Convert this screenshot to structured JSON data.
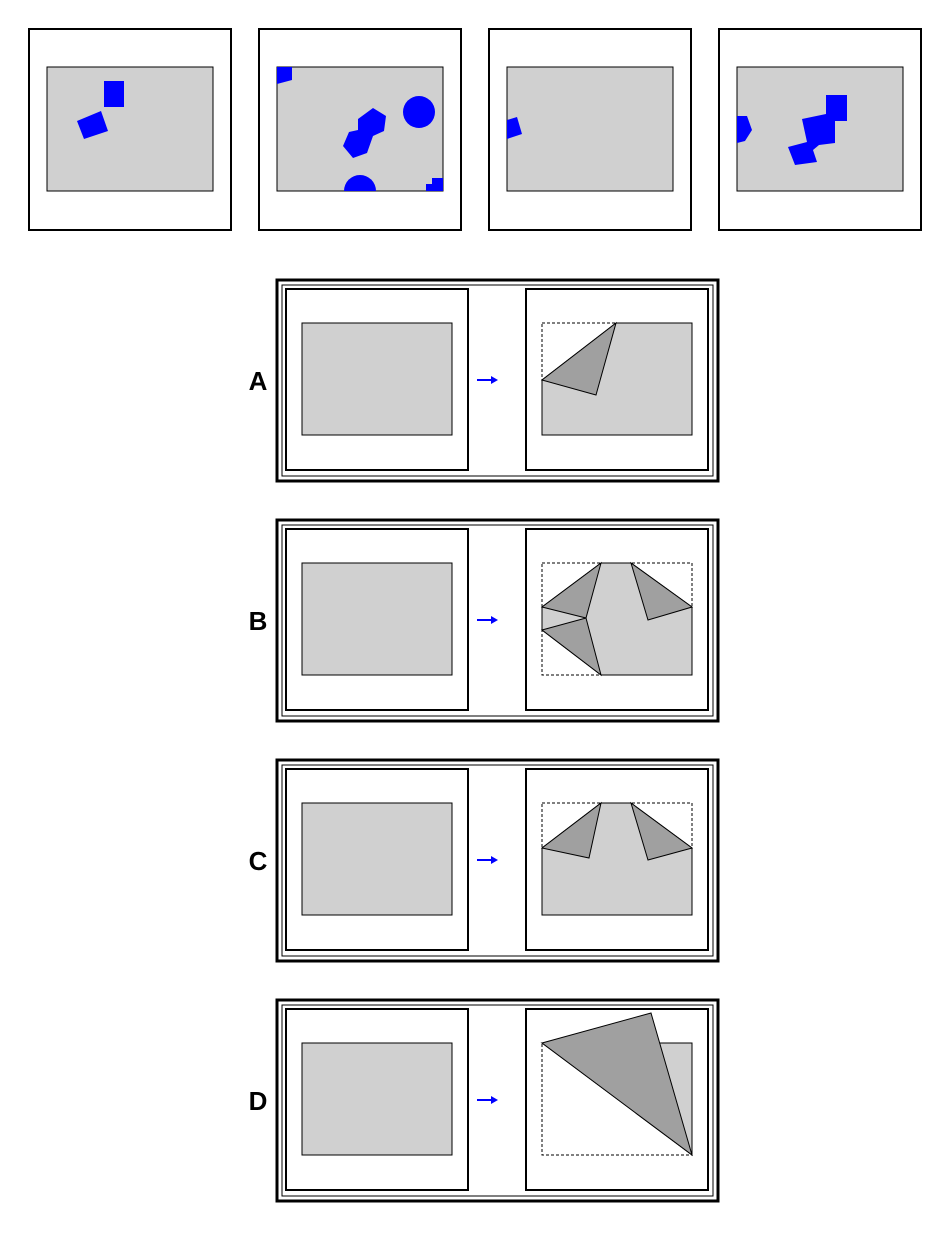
{
  "colors": {
    "background": "#ffffff",
    "paper": "#d0d0d0",
    "fold": "#a0a0a0",
    "blue": "#0000ff",
    "line": "#000000"
  },
  "examples": [
    {
      "name": "example-panel-1",
      "description_icons": [
        "blue-square-shape",
        "blue-rotated-rectangle-shape"
      ]
    },
    {
      "name": "example-panel-2",
      "description_icons": [
        "blue-hexagon-shape",
        "blue-circle-shape",
        "blue-half-circle-shape",
        "blue-corner-shape"
      ]
    },
    {
      "name": "example-panel-3",
      "description_icons": [
        "blue-edge-shape"
      ]
    },
    {
      "name": "example-panel-4",
      "description_icons": [
        "blue-square-cluster-shape"
      ]
    }
  ],
  "options": [
    {
      "label": "A"
    },
    {
      "label": "B"
    },
    {
      "label": "C"
    },
    {
      "label": "D"
    }
  ],
  "arrow_icon": "right-arrow-icon"
}
